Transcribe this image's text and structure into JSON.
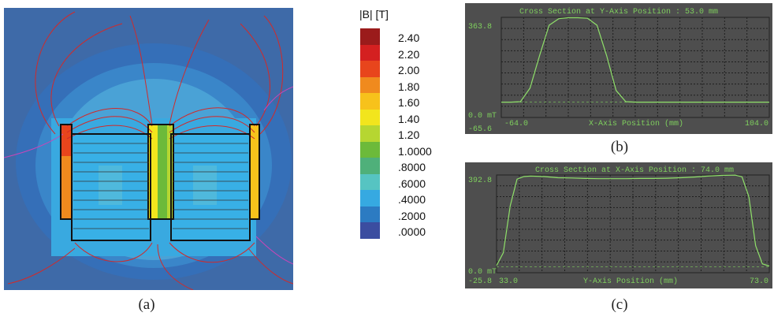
{
  "field_map": {
    "caption": "(a)",
    "colors": {
      "background_outer": "#3e6aa8",
      "field_low": "#39a9e0",
      "field_mid": "#5fc0d6",
      "flux_line": "#d12a2a"
    }
  },
  "colorbar": {
    "title": "|B| [T]",
    "ticks": [
      {
        "label": "2.40",
        "color": "#9b1b1b"
      },
      {
        "label": "2.20",
        "color": "#d42020"
      },
      {
        "label": "2.00",
        "color": "#e8451c"
      },
      {
        "label": "1.80",
        "color": "#f08a1e"
      },
      {
        "label": "1.60",
        "color": "#f7c21b"
      },
      {
        "label": "1.40",
        "color": "#f2e51d"
      },
      {
        "label": "1.20",
        "color": "#b6d631"
      },
      {
        "label": "1.0000",
        "color": "#6cba3a"
      },
      {
        "label": ".8000",
        "color": "#4fb07a"
      },
      {
        "label": ".6000",
        "color": "#56c4c2"
      },
      {
        "label": ".4000",
        "color": "#36a9e1"
      },
      {
        "label": ".2000",
        "color": "#2c7bc2"
      },
      {
        "label": ".0000",
        "color": "#3b4da0"
      }
    ]
  },
  "plot_b": {
    "caption": "(b)",
    "title": "Cross Section at Y-Axis Position : 53.0 mm",
    "y_top_label": "363.8",
    "y_zero_label": "0.0 mT",
    "y_bottom_label": "-65.6",
    "x_left_label": "-64.0",
    "x_right_label": "104.0",
    "x_axis_label": "X-Axis Position (mm)",
    "chart_data": {
      "type": "line",
      "x": [
        -64,
        -58,
        -52,
        -46,
        -40,
        -34,
        -28,
        -22,
        -16,
        -10,
        -4,
        2,
        8,
        14,
        20,
        26,
        32,
        38,
        44,
        50,
        56,
        62,
        68,
        74,
        80,
        86,
        92,
        98,
        104
      ],
      "y": [
        0,
        0,
        2,
        60,
        200,
        330,
        358,
        362,
        362,
        360,
        330,
        200,
        50,
        2,
        0,
        0,
        0,
        0,
        0,
        0,
        0,
        0,
        0,
        0,
        0,
        0,
        0,
        0,
        0
      ],
      "xlabel": "X-Axis Position (mm)",
      "ylim": [
        -65.6,
        363.8
      ],
      "xlim": [
        -64.0,
        104.0
      ],
      "grid": true
    }
  },
  "plot_c": {
    "caption": "(c)",
    "title": "Cross Section at X-Axis Position : 74.0 mm",
    "y_top_label": "392.8",
    "y_zero_label": "0.0 mT",
    "y_bottom_label": "-25.8",
    "x_left_label": "33.0",
    "x_right_label": "73.0",
    "x_axis_label": "Y-Axis Position (mm)",
    "chart_data": {
      "type": "line",
      "x": [
        33,
        34,
        35,
        36,
        37,
        38,
        40,
        42,
        44,
        46,
        48,
        50,
        52,
        54,
        56,
        58,
        60,
        62,
        64,
        66,
        68,
        69,
        70,
        71,
        72,
        73
      ],
      "y": [
        5,
        60,
        260,
        375,
        386,
        388,
        386,
        381,
        380,
        378,
        377,
        377,
        377,
        378,
        378,
        379,
        381,
        384,
        388,
        391,
        392,
        385,
        300,
        90,
        12,
        3
      ],
      "xlabel": "Y-Axis Position (mm)",
      "ylim": [
        -25.8,
        392.8
      ],
      "xlim": [
        33.0,
        73.0
      ],
      "grid": true
    }
  }
}
